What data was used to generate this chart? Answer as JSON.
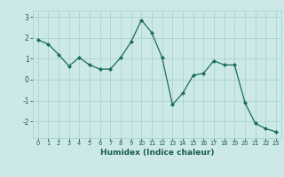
{
  "x": [
    0,
    1,
    2,
    3,
    4,
    5,
    6,
    7,
    8,
    9,
    10,
    11,
    12,
    13,
    14,
    15,
    16,
    17,
    18,
    19,
    20,
    21,
    22,
    23
  ],
  "y": [
    1.9,
    1.7,
    1.2,
    0.65,
    1.05,
    0.7,
    0.5,
    0.5,
    1.05,
    1.8,
    2.85,
    2.25,
    1.05,
    -1.2,
    -0.65,
    0.2,
    0.3,
    0.9,
    0.7,
    0.7,
    -1.1,
    -2.1,
    -2.35,
    -2.5
  ],
  "line_color": "#1a6b5a",
  "marker": "D",
  "marker_size": 2.2,
  "bg_color": "#cce9e7",
  "grid_color": "#aad4d0",
  "xlabel": "Humidex (Indice chaleur)",
  "xlabel_color": "#1a5c4e",
  "tick_color": "#1a5c4e",
  "ylim": [
    -2.8,
    3.3
  ],
  "yticks": [
    -2,
    -1,
    0,
    1,
    2,
    3
  ],
  "xlim": [
    -0.5,
    23.5
  ],
  "xticks": [
    0,
    1,
    2,
    3,
    4,
    5,
    6,
    7,
    8,
    9,
    10,
    11,
    12,
    13,
    14,
    15,
    16,
    17,
    18,
    19,
    20,
    21,
    22,
    23
  ]
}
